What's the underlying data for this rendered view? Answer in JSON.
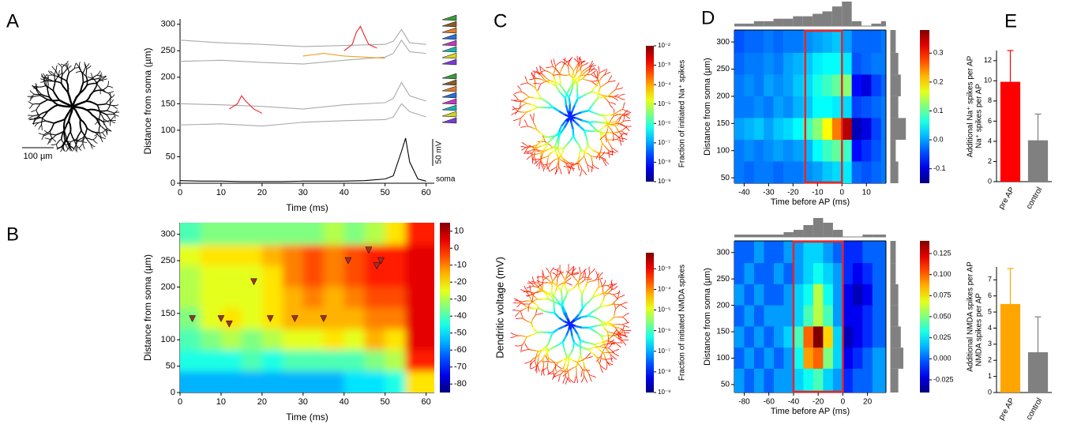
{
  "panel_labels": [
    "A",
    "B",
    "C",
    "D",
    "E"
  ],
  "chart_data": [
    {
      "type": "line",
      "xlabel": "Time (ms)",
      "ylabel": "Distance from soma (µm)",
      "xlim": [
        0,
        62
      ],
      "ylim": [
        0,
        310
      ],
      "xticks": [
        0,
        10,
        20,
        30,
        40,
        50,
        60
      ],
      "yticks": [
        0,
        50,
        100,
        150,
        200,
        250,
        300
      ],
      "annotations": [
        "50 mV",
        "soma",
        "100 µm"
      ],
      "series": [
        {
          "color": "#aaaaaa",
          "x": [
            0,
            10,
            20,
            30,
            40,
            50,
            52,
            54,
            56,
            60
          ],
          "values": [
            270,
            265,
            262,
            258,
            260,
            262,
            268,
            290,
            265,
            262
          ]
        },
        {
          "color": "#aaaaaa",
          "x": [
            0,
            10,
            20,
            30,
            40,
            50,
            52,
            54,
            56,
            60
          ],
          "values": [
            230,
            232,
            228,
            225,
            232,
            238,
            245,
            270,
            248,
            245
          ]
        },
        {
          "color": "#aaaaaa",
          "x": [
            0,
            10,
            20,
            30,
            40,
            50,
            52,
            54,
            56,
            60
          ],
          "values": [
            150,
            148,
            145,
            140,
            148,
            152,
            160,
            190,
            165,
            155
          ]
        },
        {
          "color": "#aaaaaa",
          "x": [
            0,
            10,
            20,
            30,
            40,
            50,
            52,
            54,
            56,
            60
          ],
          "values": [
            110,
            112,
            108,
            115,
            118,
            120,
            125,
            150,
            135,
            125
          ]
        },
        {
          "color": "#e8252a",
          "x": [
            40,
            42,
            43,
            44,
            45,
            46,
            48
          ],
          "values": [
            250,
            262,
            285,
            296,
            278,
            262,
            255
          ]
        },
        {
          "color": "#e8252a",
          "x": [
            12,
            14,
            15,
            16,
            18,
            20
          ],
          "values": [
            140,
            150,
            165,
            155,
            140,
            132
          ]
        },
        {
          "color": "#f0a020",
          "x": [
            30,
            35,
            40,
            45,
            50
          ],
          "values": [
            240,
            245,
            240,
            238,
            236
          ]
        },
        {
          "color": "#000000",
          "x": [
            0,
            5,
            10,
            15,
            20,
            25,
            30,
            35,
            40,
            45,
            50,
            52,
            54,
            55,
            56,
            58,
            60
          ],
          "values": [
            5,
            4,
            4,
            3,
            3,
            3,
            4,
            4,
            4,
            5,
            8,
            14,
            60,
            85,
            40,
            8,
            4
          ]
        }
      ]
    },
    {
      "type": "contour",
      "xlabel": "Time (ms)",
      "ylabel": "Distance from soma (µm)",
      "colorbar_label": "Dendritic voltage (mV)",
      "xlim": [
        0,
        62
      ],
      "ylim": [
        0,
        322
      ],
      "xticks": [
        0,
        10,
        20,
        30,
        40,
        50,
        60
      ],
      "yticks": [
        0,
        50,
        100,
        150,
        200,
        250,
        300
      ],
      "clim": [
        -85,
        15
      ],
      "cticks": [
        10,
        0,
        -10,
        -20,
        -30,
        -40,
        -50,
        -60,
        -70,
        -80
      ],
      "x": [
        2.5,
        7.5,
        12.5,
        17.5,
        22.5,
        27.5,
        32.5,
        37.5,
        42.5,
        47.5,
        52.5,
        57.5
      ],
      "y": [
        20,
        60,
        100,
        140,
        180,
        220,
        260,
        300
      ],
      "z": [
        [
          -55,
          -55,
          -55,
          -55,
          -55,
          -55,
          -55,
          -55,
          -50,
          -50,
          -45,
          -20
        ],
        [
          -45,
          -45,
          -45,
          -40,
          -45,
          -40,
          -40,
          -40,
          -40,
          -35,
          -30,
          0
        ],
        [
          -40,
          -35,
          -30,
          -35,
          -30,
          -25,
          -25,
          -20,
          -25,
          -15,
          -20,
          5
        ],
        [
          -35,
          -25,
          -20,
          -25,
          -20,
          -15,
          -15,
          -15,
          -15,
          -10,
          -10,
          5
        ],
        [
          -30,
          -25,
          -25,
          -25,
          -20,
          -15,
          -10,
          -15,
          -10,
          -5,
          -5,
          5
        ],
        [
          -30,
          -25,
          -25,
          -25,
          -20,
          -10,
          -5,
          -10,
          -5,
          0,
          0,
          5
        ],
        [
          -25,
          -20,
          -20,
          -20,
          -15,
          -10,
          -5,
          -10,
          -5,
          0,
          0,
          5
        ],
        [
          -40,
          -35,
          -35,
          -35,
          -35,
          -35,
          -35,
          -30,
          -35,
          -30,
          -20,
          0
        ]
      ],
      "markers": {
        "color": "#a0302a",
        "x": [
          3,
          10,
          12,
          18,
          22,
          28,
          35,
          41,
          46,
          48,
          49
        ],
        "y": [
          140,
          140,
          130,
          210,
          140,
          140,
          140,
          250,
          270,
          240,
          250
        ]
      }
    },
    {
      "type": "colorbar",
      "label": "Fraction of initiated Na⁺ spikes",
      "log": true,
      "clim": [
        1e-09,
        0.01
      ],
      "cticks": [
        {
          "value": 0.01,
          "label": "10⁻²"
        },
        {
          "value": 0.001,
          "label": "10⁻³"
        },
        {
          "value": 0.0001,
          "label": "10⁻⁴"
        },
        {
          "value": 1e-05,
          "label": "10⁻⁵"
        },
        {
          "value": 1e-06,
          "label": "10⁻⁶"
        },
        {
          "value": 1e-07,
          "label": "10⁻⁷"
        },
        {
          "value": 1e-08,
          "label": "10⁻⁸"
        },
        {
          "value": 1e-09,
          "label": "10⁻⁹"
        }
      ]
    },
    {
      "type": "colorbar",
      "label": "Fraction of initiated NMDA spikes",
      "log": true,
      "clim": [
        1e-09,
        0.006
      ],
      "cticks": [
        {
          "value": 0.001,
          "label": "10⁻³"
        },
        {
          "value": 0.0001,
          "label": "10⁻⁴"
        },
        {
          "value": 1e-05,
          "label": "10⁻⁵"
        },
        {
          "value": 1e-06,
          "label": "10⁻⁶"
        },
        {
          "value": 1e-07,
          "label": "10⁻⁷"
        },
        {
          "value": 1e-08,
          "label": "10⁻⁸"
        },
        {
          "value": 1e-09,
          "label": "10⁻⁹"
        }
      ]
    },
    {
      "type": "heatmap",
      "xlabel": "Time before AP (ms)",
      "ylabel": "Distance from soma (µm)",
      "colorbar_label": "Additional Na⁺ spikes per AP",
      "xlim": [
        -44,
        18
      ],
      "ylim": [
        40,
        322
      ],
      "xticks": [
        -40,
        -30,
        -20,
        -10,
        0,
        10
      ],
      "yticks": [
        50,
        100,
        150,
        200,
        250,
        300
      ],
      "clim": [
        -0.15,
        0.38
      ],
      "cticks": [
        -0.1,
        {
          "value": 0,
          "label": "0.0"
        },
        0.1,
        0.2,
        0.3
      ],
      "highlight": {
        "x": [
          -15,
          0
        ],
        "color": "#e8252a"
      },
      "x": [
        -42,
        -38,
        -34,
        -30,
        -26,
        -22,
        -18,
        -14,
        -10,
        -6,
        -2,
        2,
        6,
        10,
        14,
        18
      ],
      "y": [
        60,
        100,
        140,
        180,
        220,
        260,
        300
      ],
      "z": [
        [
          -0.02,
          -0.03,
          -0.02,
          -0.02,
          -0.03,
          -0.02,
          -0.02,
          -0.01,
          0.0,
          0.02,
          0.03,
          0.04,
          -0.03,
          -0.04,
          -0.03,
          -0.02
        ],
        [
          -0.02,
          -0.01,
          -0.02,
          -0.01,
          0.0,
          -0.01,
          0.0,
          0.01,
          0.05,
          0.08,
          0.1,
          0.08,
          -0.08,
          -0.06,
          -0.04,
          -0.02
        ],
        [
          0.0,
          0.01,
          0.02,
          0.0,
          0.02,
          0.03,
          0.05,
          0.08,
          0.12,
          0.18,
          0.25,
          0.35,
          -0.12,
          -0.1,
          -0.05,
          -0.02
        ],
        [
          -0.02,
          -0.02,
          -0.01,
          -0.02,
          0.0,
          -0.01,
          0.01,
          0.02,
          0.05,
          0.05,
          0.04,
          0.03,
          -0.05,
          -0.04,
          -0.03,
          -0.02
        ],
        [
          -0.02,
          -0.01,
          -0.02,
          0.0,
          -0.01,
          0.0,
          0.02,
          0.03,
          0.06,
          0.08,
          0.1,
          0.12,
          -0.08,
          -0.1,
          -0.05,
          -0.03
        ],
        [
          -0.03,
          -0.02,
          -0.02,
          -0.01,
          -0.02,
          0.0,
          0.01,
          0.02,
          0.04,
          0.05,
          0.05,
          0.04,
          -0.04,
          -0.03,
          -0.02,
          -0.02
        ],
        [
          -0.04,
          -0.03,
          -0.03,
          -0.02,
          -0.03,
          -0.02,
          -0.02,
          -0.01,
          0.0,
          0.01,
          0.02,
          0.0,
          -0.03,
          -0.03,
          -0.03,
          -0.02
        ]
      ],
      "top_hist": {
        "color": "#808080",
        "lim": [
          0,
          10
        ],
        "values": [
          1,
          1,
          2,
          2,
          3,
          3,
          4,
          4,
          5,
          6,
          8,
          10,
          2,
          0,
          1,
          2
        ]
      },
      "right_hist": {
        "color": "#808080",
        "lim": [
          0,
          10
        ],
        "values": [
          3,
          2,
          6,
          3,
          4,
          3,
          2
        ]
      }
    },
    {
      "type": "heatmap",
      "xlabel": "Time before AP (ms)",
      "ylabel": "Distance from soma (µm)",
      "colorbar_label": "Additional NMDA spikes per AP",
      "xlim": [
        -88,
        35
      ],
      "ylim": [
        35,
        322
      ],
      "xticks": [
        -80,
        -60,
        -40,
        -20,
        0,
        20
      ],
      "yticks": [
        50,
        100,
        150,
        200,
        250,
        300
      ],
      "clim": [
        -0.04,
        0.14
      ],
      "cticks": [
        -0.025,
        {
          "value": 0,
          "label": "0.000"
        },
        0.025,
        {
          "value": 0.05,
          "label": "0.050"
        },
        0.075,
        {
          "value": 0.1,
          "label": "0.100"
        },
        0.125
      ],
      "highlight": {
        "x": [
          -40,
          0
        ],
        "color": "#e8252a"
      },
      "x": [
        -84,
        -76,
        -68,
        -60,
        -52,
        -44,
        -36,
        -28,
        -20,
        -12,
        -4,
        4,
        12,
        20,
        28
      ],
      "y": [
        60,
        100,
        140,
        180,
        220,
        260,
        300
      ],
      "z": [
        [
          0.01,
          0.0,
          0.01,
          0.0,
          0.01,
          0.01,
          0.02,
          0.03,
          0.04,
          0.02,
          0.01,
          -0.01,
          0.0,
          0.0,
          0.01
        ],
        [
          0.0,
          0.01,
          0.0,
          0.01,
          0.0,
          0.01,
          0.03,
          0.09,
          0.1,
          0.05,
          0.02,
          -0.02,
          -0.01,
          0.0,
          0.01
        ],
        [
          0.01,
          0.0,
          0.01,
          0.0,
          0.01,
          0.02,
          0.04,
          0.1,
          0.14,
          0.08,
          0.02,
          -0.03,
          -0.02,
          -0.01,
          0.0
        ],
        [
          0.0,
          0.01,
          0.0,
          0.01,
          0.01,
          0.01,
          0.02,
          0.04,
          0.06,
          0.04,
          0.01,
          -0.02,
          -0.02,
          -0.01,
          0.0
        ],
        [
          0.01,
          0.0,
          0.01,
          0.0,
          0.0,
          0.01,
          0.02,
          0.03,
          0.06,
          0.03,
          0.01,
          -0.02,
          -0.03,
          -0.02,
          0.0
        ],
        [
          0.0,
          0.01,
          0.0,
          0.0,
          0.01,
          0.0,
          0.01,
          0.02,
          0.03,
          0.02,
          0.01,
          -0.01,
          -0.02,
          -0.01,
          0.0
        ],
        [
          0.0,
          0.0,
          0.01,
          0.0,
          0.0,
          0.01,
          0.01,
          0.02,
          0.02,
          0.01,
          0.0,
          -0.01,
          -0.01,
          0.0,
          0.0
        ]
      ],
      "top_hist": {
        "color": "#808080",
        "lim": [
          0,
          10
        ],
        "values": [
          1,
          1,
          1,
          1,
          1,
          2,
          3,
          5,
          8,
          6,
          3,
          0,
          0,
          1,
          1
        ]
      },
      "right_hist": {
        "color": "#808080",
        "lim": [
          0,
          10
        ],
        "values": [
          3,
          5,
          4,
          3,
          3,
          2,
          2
        ]
      }
    },
    {
      "type": "bar",
      "ylabel": "Na⁺ spikes per AP",
      "categories": [
        "pre AP",
        "control"
      ],
      "values": [
        9.9,
        4.1
      ],
      "errors": [
        3.1,
        2.6
      ],
      "colors": [
        "#ff0000",
        "#808080"
      ],
      "label_colors": [
        "#ff0000",
        "#000000"
      ],
      "ylim": [
        0,
        13
      ],
      "yticks": [
        0,
        2,
        4,
        6,
        8,
        10,
        12
      ]
    },
    {
      "type": "bar",
      "ylabel": "NMDA spikes per AP",
      "categories": [
        "pre AP",
        "control"
      ],
      "values": [
        5.5,
        2.5
      ],
      "errors": [
        2.2,
        2.2
      ],
      "colors": [
        "#ffa500",
        "#808080"
      ],
      "label_colors": [
        "#ffa500",
        "#000000"
      ],
      "ylim": [
        0,
        7.8
      ],
      "yticks": [
        0,
        1,
        2,
        3,
        4,
        5,
        6,
        7
      ]
    }
  ]
}
